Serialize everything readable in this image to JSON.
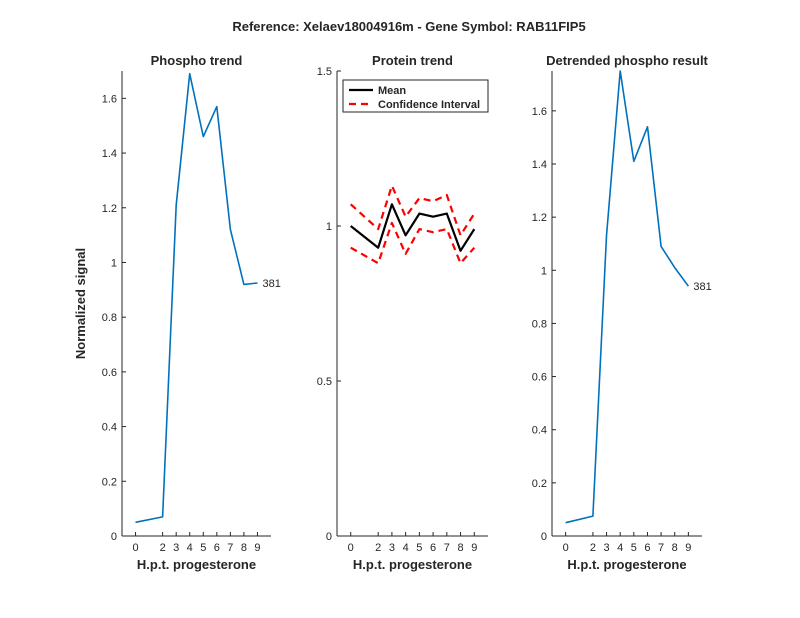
{
  "figure_title": "Reference:  Xelaev18004916m - Gene Symbol:  RAB11FIP5",
  "colors": {
    "phospho_line": "#0072BD",
    "mean_line": "#000000",
    "ci_line": "#FF0000",
    "axis": "#262626"
  },
  "chart_data": [
    {
      "type": "line",
      "title": "Phospho trend",
      "xlabel": "H.p.t. progesterone",
      "ylabel": "Normalized signal",
      "x": [
        0,
        2,
        3,
        4,
        5,
        6,
        7,
        8,
        9
      ],
      "xticks": [
        "0",
        "2",
        "3",
        "4",
        "5",
        "6",
        "7",
        "8",
        "9"
      ],
      "ylim": [
        0,
        1.7
      ],
      "yticks": [
        "0",
        "0.2",
        "0.4",
        "0.6",
        "0.8",
        "1",
        "1.2",
        "1.4",
        "1.6"
      ],
      "series": [
        {
          "name": "Phospho",
          "values": [
            0.05,
            0.07,
            1.21,
            1.69,
            1.46,
            1.57,
            1.12,
            0.92,
            0.925
          ]
        }
      ],
      "end_label": "381",
      "grid": false
    },
    {
      "type": "line",
      "title": "Protein trend",
      "xlabel": "H.p.t. progesterone",
      "ylabel": "",
      "x": [
        0,
        2,
        3,
        4,
        5,
        6,
        7,
        8,
        9
      ],
      "xticks": [
        "0",
        "2",
        "3",
        "4",
        "5",
        "6",
        "7",
        "8",
        "9"
      ],
      "ylim": [
        0,
        1.5
      ],
      "yticks": [
        "0",
        "0.5",
        "1",
        "1.5"
      ],
      "series": [
        {
          "name": "Mean",
          "values": [
            1.0,
            0.93,
            1.07,
            0.97,
            1.04,
            1.03,
            1.04,
            0.92,
            0.99
          ]
        },
        {
          "name": "Confidence Interval",
          "values": [
            1.07,
            0.99,
            1.13,
            1.03,
            1.09,
            1.08,
            1.1,
            0.97,
            1.04
          ]
        },
        {
          "name": "Confidence Interval (lower)",
          "values": [
            0.93,
            0.88,
            1.01,
            0.91,
            0.99,
            0.98,
            0.99,
            0.88,
            0.93
          ]
        }
      ],
      "legend": [
        "Mean",
        "Confidence Interval"
      ],
      "legend_location": "top-right",
      "grid": false
    },
    {
      "type": "line",
      "title": "Detrended phospho result",
      "xlabel": "H.p.t. progesterone",
      "ylabel": "",
      "x": [
        0,
        2,
        3,
        4,
        5,
        6,
        7,
        8,
        9
      ],
      "xticks": [
        "0",
        "2",
        "3",
        "4",
        "5",
        "6",
        "7",
        "8",
        "9"
      ],
      "ylim": [
        0,
        1.75
      ],
      "yticks": [
        "0",
        "0.2",
        "0.4",
        "0.6",
        "0.8",
        "1",
        "1.2",
        "1.4",
        "1.6"
      ],
      "series": [
        {
          "name": "Detrended",
          "values": [
            0.05,
            0.075,
            1.13,
            1.75,
            1.41,
            1.54,
            1.09,
            1.01,
            0.94
          ]
        }
      ],
      "end_label": "381",
      "grid": false
    }
  ]
}
